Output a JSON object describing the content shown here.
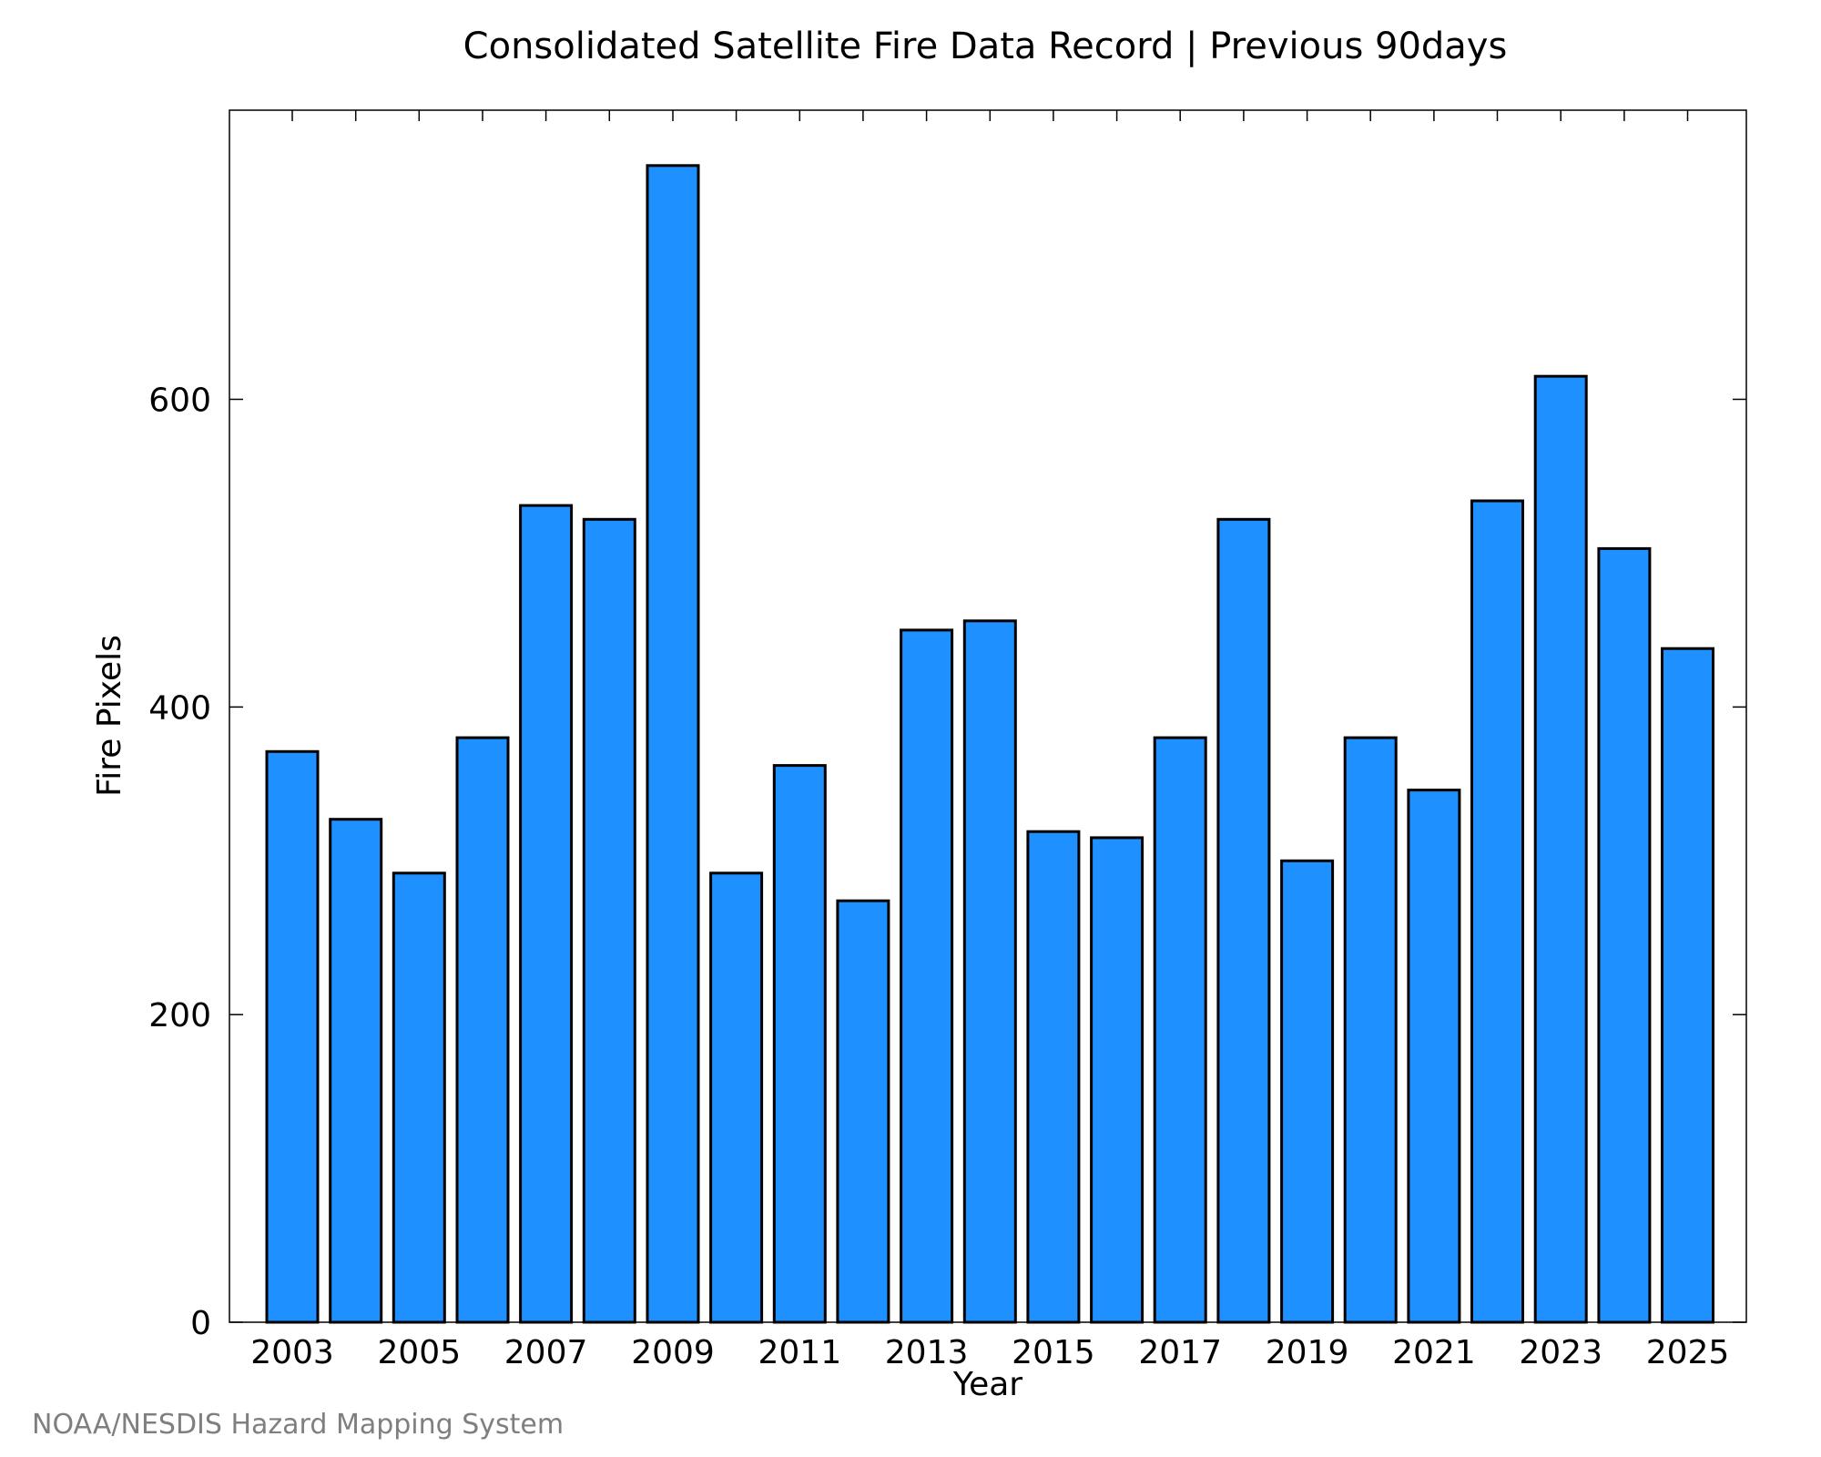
{
  "chart_data": {
    "type": "bar",
    "title": "Consolidated Satellite Fire Data Record | Previous 90days",
    "xlabel": "Year",
    "ylabel": "Fire Pixels",
    "categories": [
      "2003",
      "2004",
      "2005",
      "2006",
      "2007",
      "2008",
      "2009",
      "2010",
      "2011",
      "2012",
      "2013",
      "2014",
      "2015",
      "2016",
      "2017",
      "2018",
      "2019",
      "2020",
      "2021",
      "2022",
      "2023",
      "2024",
      "2025"
    ],
    "x_tick_labels": [
      "2003",
      "2005",
      "2007",
      "2009",
      "2011",
      "2013",
      "2015",
      "2017",
      "2019",
      "2021",
      "2023",
      "2025"
    ],
    "y_ticks": [
      0,
      200,
      400,
      600
    ],
    "values": [
      371,
      327,
      292,
      380,
      531,
      522,
      752,
      292,
      362,
      274,
      450,
      456,
      319,
      315,
      380,
      522,
      300,
      380,
      346,
      534,
      615,
      503,
      438
    ],
    "ylim": [
      0,
      788
    ],
    "bar_color": "#1e90ff",
    "bar_edge_color": "#000000",
    "grid": false,
    "legend": false
  },
  "credit": "NOAA/NESDIS Hazard Mapping System"
}
